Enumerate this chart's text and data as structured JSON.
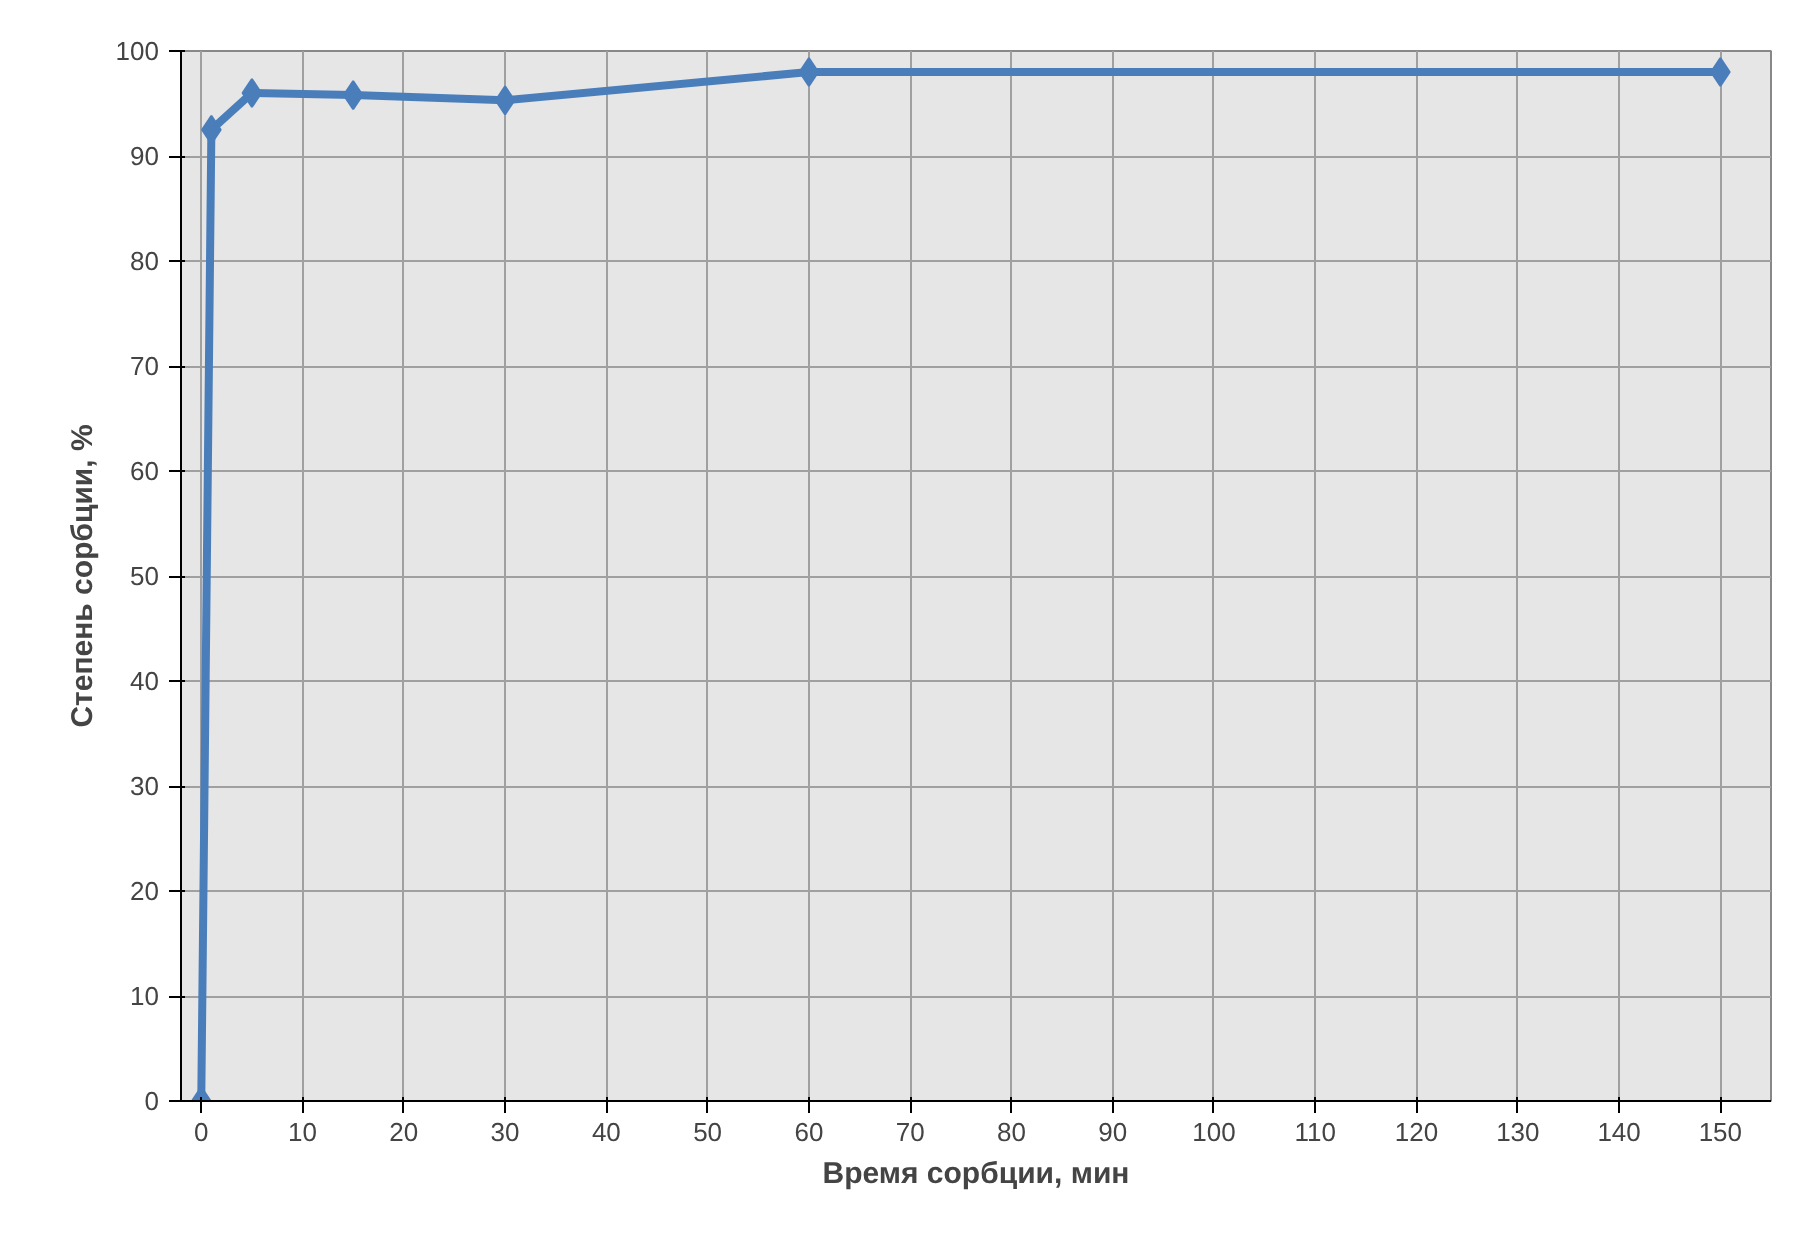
{
  "chart_data": {
    "type": "line",
    "xlabel": "Время сорбции, мин",
    "ylabel": "Степень сорбции, %",
    "x": [
      0,
      1,
      5,
      15,
      30,
      60,
      150
    ],
    "series": [
      {
        "color": "#4a7ebb",
        "values": [
          0,
          92.5,
          96,
          95.8,
          95.3,
          98,
          98
        ]
      }
    ],
    "xlim": [
      -2,
      155
    ],
    "xticks": [
      0,
      10,
      20,
      30,
      40,
      50,
      60,
      70,
      80,
      90,
      100,
      110,
      120,
      130,
      140,
      150
    ],
    "ylim": [
      0,
      100
    ],
    "yticks": [
      0,
      10,
      20,
      30,
      40,
      50,
      60,
      70,
      80,
      90,
      100
    ],
    "grid": true,
    "marker": "diamond",
    "line_style": "solid"
  }
}
